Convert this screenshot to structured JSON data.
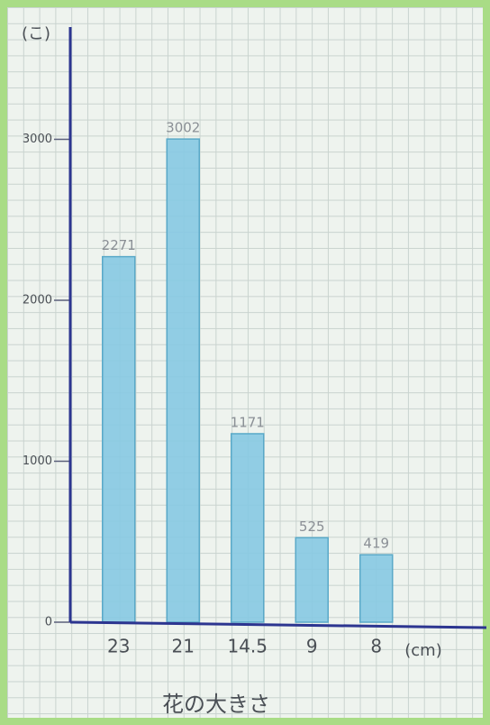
{
  "chart_data": {
    "type": "bar",
    "y_label": "(こ)",
    "x_label": "花の大きさ",
    "x_unit": "(cm)",
    "categories": [
      "23",
      "21",
      "14.5",
      "9",
      "8"
    ],
    "values": [
      2271,
      3002,
      1171,
      525,
      419
    ],
    "color": "#86c9e2",
    "ylim": [
      0,
      3600
    ],
    "yticks": [
      0,
      1000,
      2000,
      3000
    ]
  }
}
